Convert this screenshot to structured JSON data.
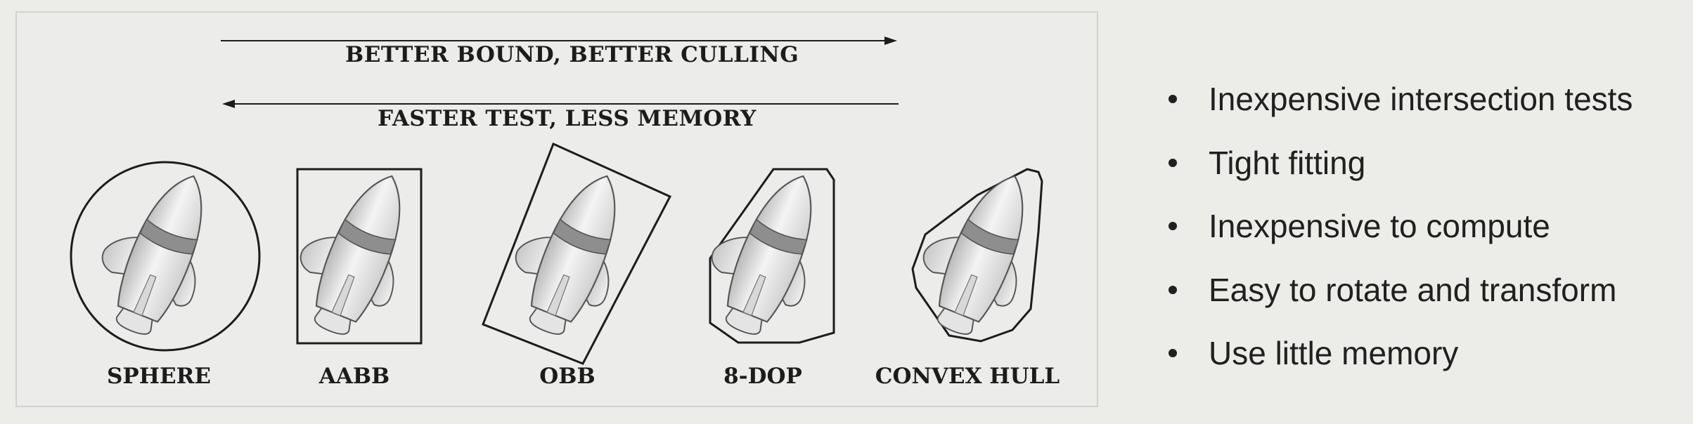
{
  "diagram": {
    "arrow_top": "BETTER BOUND, BETTER CULLING",
    "arrow_bottom": "FASTER TEST, LESS MEMORY",
    "shapes": [
      {
        "label": "SPHERE"
      },
      {
        "label": "AABB"
      },
      {
        "label": "OBB"
      },
      {
        "label": "8-DOP"
      },
      {
        "label": "CONVEX HULL"
      }
    ]
  },
  "bullets": [
    "Inexpensive intersection tests",
    "Tight fitting",
    "Inexpensive to compute",
    "Easy to rotate and transform",
    "Use little memory"
  ]
}
